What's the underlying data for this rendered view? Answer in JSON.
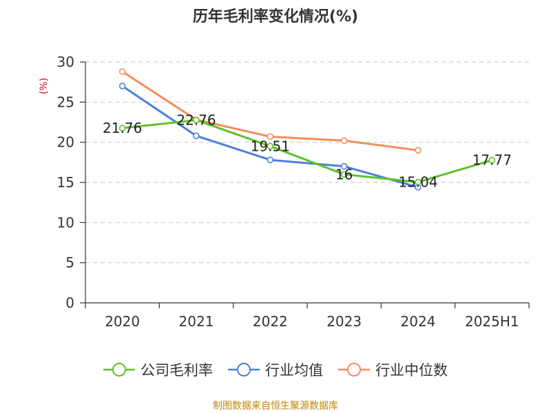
{
  "chart_data": {
    "type": "line",
    "title": "历年毛利率变化情况(%)",
    "ylabel": "(%)",
    "xlabel": "",
    "categories": [
      "2020",
      "2021",
      "2022",
      "2023",
      "2024",
      "2025H1"
    ],
    "ylim": [
      0,
      30
    ],
    "yticks": [
      "0",
      "5",
      "10",
      "15",
      "20",
      "25",
      "30"
    ],
    "grid": true,
    "legend_position": "bottom",
    "series": [
      {
        "name": "公司毛利率",
        "color": "#5ec12a",
        "values": [
          21.76,
          22.76,
          19.51,
          16,
          15.04,
          17.77
        ],
        "labels": [
          "21.76",
          "22.76",
          "19.51",
          "16",
          "15.04",
          "17.77"
        ]
      },
      {
        "name": "行业均值",
        "color": "#4a7fd9",
        "values": [
          27,
          20.8,
          17.8,
          17,
          14.4,
          null
        ]
      },
      {
        "name": "行业中位数",
        "color": "#f58c5a",
        "values": [
          28.8,
          22.8,
          20.7,
          20.2,
          19,
          null
        ]
      }
    ],
    "source": "制图数据来自恒生聚源数据库"
  }
}
